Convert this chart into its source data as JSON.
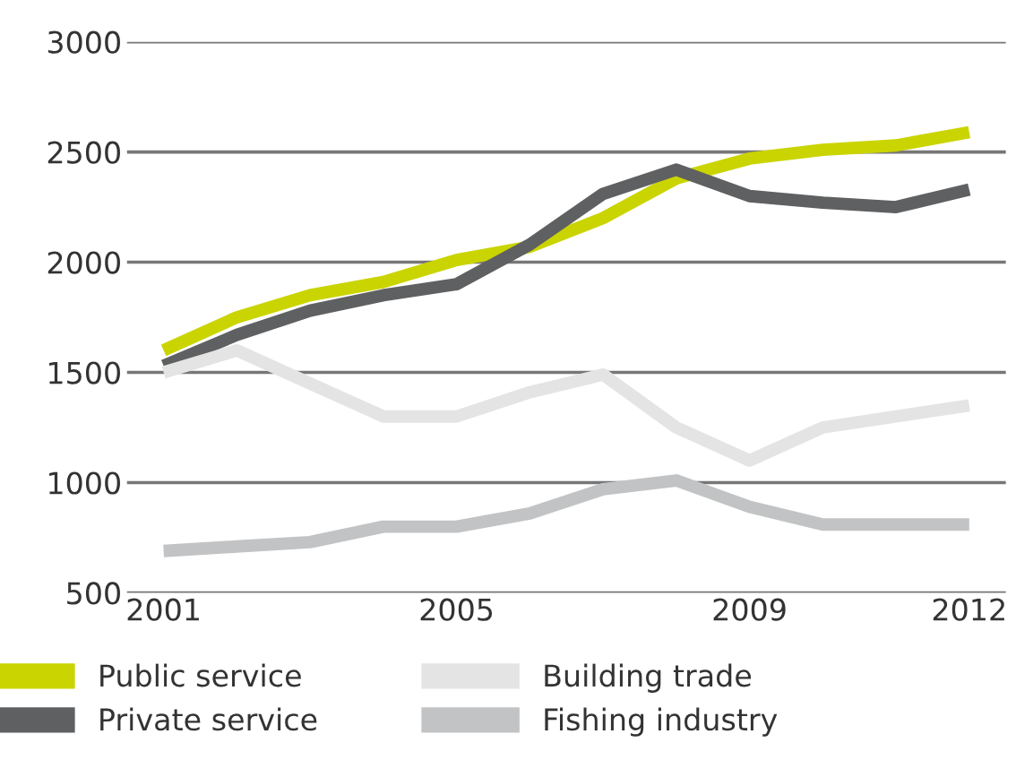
{
  "chart_data": {
    "type": "line",
    "x": [
      2001,
      2002,
      2003,
      2004,
      2005,
      2006,
      2007,
      2008,
      2009,
      2010,
      2011,
      2012
    ],
    "xlim": [
      2000.5,
      2012.5
    ],
    "xticks": [
      2001,
      2005,
      2009,
      2012
    ],
    "ylim": [
      500,
      3000
    ],
    "yticks": [
      500,
      1000,
      1500,
      2000,
      2500,
      3000
    ],
    "grid": "y",
    "legend": "bottom",
    "line_style": "solid",
    "marker": "none",
    "series": [
      {
        "name": "Public service",
        "color": "#cad400",
        "values": [
          1600,
          1750,
          1850,
          1910,
          2010,
          2070,
          2200,
          2380,
          2470,
          2510,
          2530,
          2590
        ]
      },
      {
        "name": "Private service",
        "color": "#5f6062",
        "values": [
          1530,
          1670,
          1780,
          1850,
          1900,
          2080,
          2310,
          2420,
          2300,
          2270,
          2250,
          2330
        ]
      },
      {
        "name": "Building trade",
        "color": "#e3e4e3",
        "values": [
          1500,
          1600,
          1450,
          1300,
          1300,
          1410,
          1490,
          1250,
          1100,
          1250,
          1300,
          1350
        ]
      },
      {
        "name": "Fishing industry",
        "color": "#c2c3c4",
        "values": [
          690,
          710,
          730,
          800,
          800,
          860,
          970,
          1010,
          890,
          810,
          810,
          810
        ]
      }
    ]
  }
}
